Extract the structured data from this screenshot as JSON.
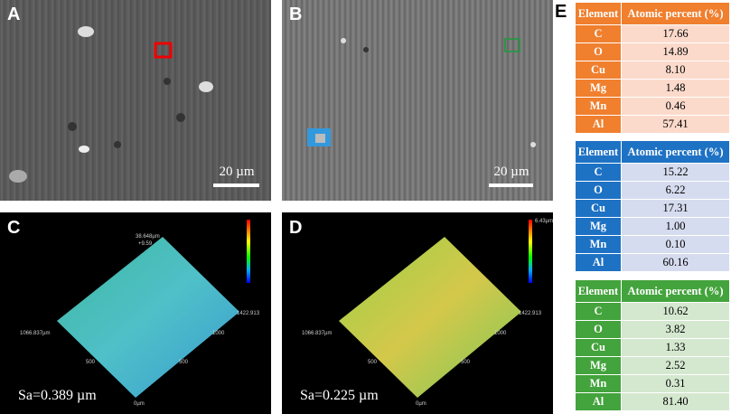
{
  "panels": {
    "A": {
      "label": "A",
      "scale": "20 µm"
    },
    "B": {
      "label": "B",
      "scale": "20 µm"
    },
    "C": {
      "label": "C",
      "sa": "Sa=0.389 µm",
      "texts": [
        "38.648µm",
        "+9.59",
        "1066.837µm",
        "1422.913",
        "1000",
        "500",
        "500",
        "0µm"
      ]
    },
    "D": {
      "label": "D",
      "sa": "Sa=0.225 µm",
      "texts": [
        "6.43µm",
        "1066.837µm",
        "1422.913",
        "1000",
        "500",
        "500",
        "0µm"
      ]
    },
    "E": {
      "label": "E"
    }
  },
  "tables": [
    {
      "header": [
        "Element",
        "Atomic percent (%)"
      ],
      "rows": [
        [
          "C",
          "17.66"
        ],
        [
          "O",
          "14.89"
        ],
        [
          "Cu",
          "8.10"
        ],
        [
          "Mg",
          "1.48"
        ],
        [
          "Mn",
          "0.46"
        ],
        [
          "Al",
          "57.41"
        ]
      ]
    },
    {
      "header": [
        "Element",
        "Atomic percent (%)"
      ],
      "rows": [
        [
          "C",
          "15.22"
        ],
        [
          "O",
          "6.22"
        ],
        [
          "Cu",
          "17.31"
        ],
        [
          "Mg",
          "1.00"
        ],
        [
          "Mn",
          "0.10"
        ],
        [
          "Al",
          "60.16"
        ]
      ]
    },
    {
      "header": [
        "Element",
        "Atomic percent (%)"
      ],
      "rows": [
        [
          "C",
          "10.62"
        ],
        [
          "O",
          "3.82"
        ],
        [
          "Cu",
          "1.33"
        ],
        [
          "Mg",
          "2.52"
        ],
        [
          "Mn",
          "0.31"
        ],
        [
          "Al",
          "81.40"
        ]
      ]
    }
  ]
}
